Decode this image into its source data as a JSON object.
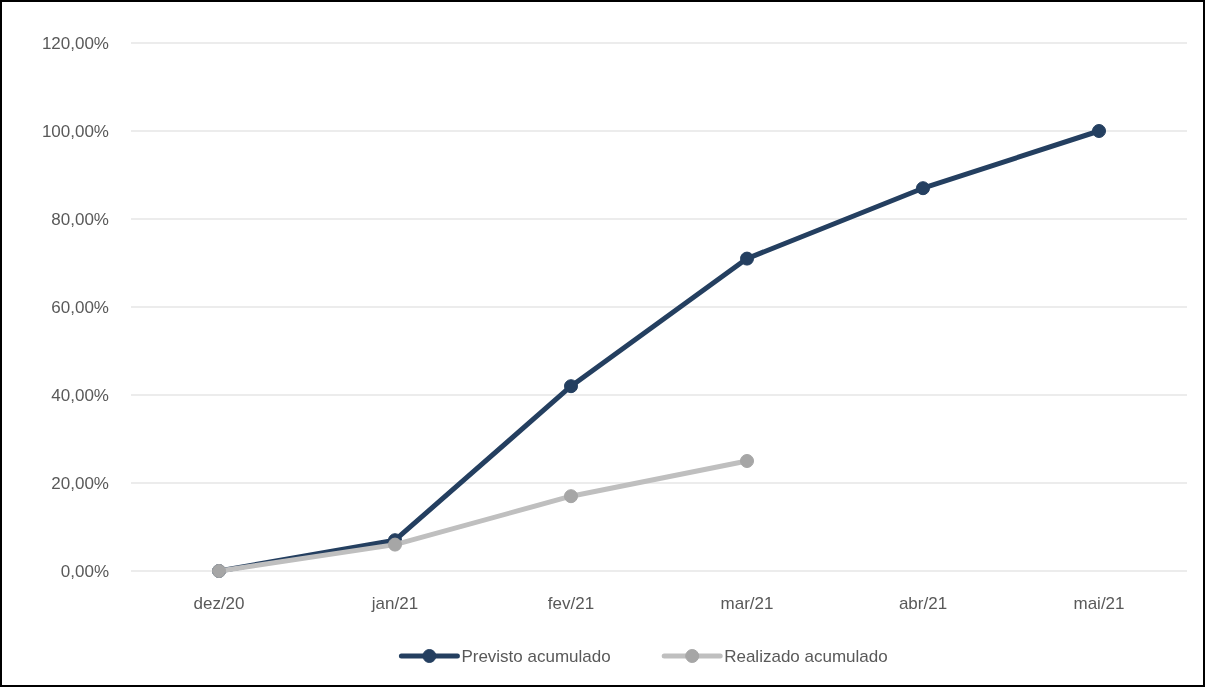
{
  "chart_data": {
    "type": "line",
    "categories": [
      "dez/20",
      "jan/21",
      "fev/21",
      "mar/21",
      "abr/21",
      "mai/21"
    ],
    "series": [
      {
        "name": "Previsto acumulado",
        "color": "#243f60",
        "values": [
          0,
          7,
          42,
          71,
          87,
          100
        ]
      },
      {
        "name": "Realizado acumulado",
        "color": "#bfbfbf",
        "values": [
          0,
          6,
          17,
          25,
          null,
          null
        ]
      }
    ],
    "ylim": [
      0,
      120
    ],
    "yticks": [
      {
        "value": 0,
        "label": "0,00%"
      },
      {
        "value": 20,
        "label": "20,00%"
      },
      {
        "value": 40,
        "label": "40,00%"
      },
      {
        "value": 60,
        "label": "60,00%"
      },
      {
        "value": 80,
        "label": "80,00%"
      },
      {
        "value": 100,
        "label": "100,00%"
      },
      {
        "value": 120,
        "label": "120,00%"
      }
    ],
    "grid": "y",
    "legend": "bottom",
    "marker": "circle",
    "line_style": "solid"
  }
}
